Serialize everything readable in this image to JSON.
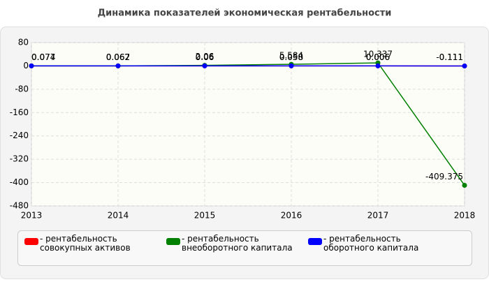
{
  "chart_data": {
    "type": "line",
    "title": "Динамика показателей экономическая рентабельности",
    "categories": [
      "2013",
      "2014",
      "2015",
      "2016",
      "2017",
      "2018"
    ],
    "series": [
      {
        "name": "- рентабельность совокупных активов",
        "color": "#ff0000",
        "values": [
          0.074,
          0.062,
          0.06,
          0.058,
          0.006,
          -0.111
        ]
      },
      {
        "name": "- рентабельность внеоборотного капитала",
        "color": "#008000",
        "values": [
          0.077,
          0.067,
          2.06,
          5.584,
          10.337,
          -409.375
        ]
      },
      {
        "name": "- рентабельность оборотного капитала",
        "color": "#0000ff",
        "values": [
          0.074,
          0.062,
          0.06,
          0.058,
          0.006,
          -0.111
        ]
      }
    ],
    "ylim": [
      -480,
      80
    ],
    "yticks": [
      -480,
      -400,
      -320,
      -240,
      -160,
      -80,
      0,
      80
    ],
    "grid": true
  }
}
